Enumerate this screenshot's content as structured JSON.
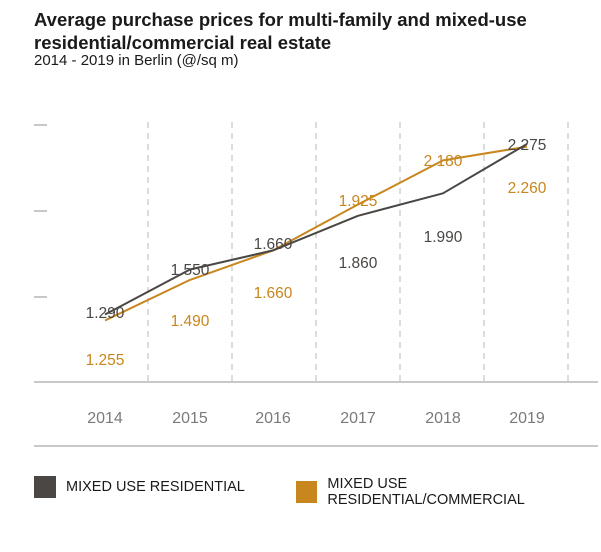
{
  "title": "Average purchase prices for multi-family and mixed-use residential/commercial real estate",
  "subtitle": "2014 - 2019 in Berlin (@/sq m)",
  "colors": {
    "mixed_use_residential": "#4a4744",
    "mixed_use_residential_commercial": "#c8861e",
    "grid": "#c9c9c9",
    "axis": "#b5b5b5",
    "tick_text": "#7a7a7a"
  },
  "chart_data": {
    "type": "line",
    "categories": [
      "2014",
      "2015",
      "2016",
      "2017",
      "2018",
      "2019"
    ],
    "series": [
      {
        "name": "MIXED USE RESIDENTIAL",
        "values": [
          1290,
          1550,
          1660,
          1860,
          1990,
          2275
        ],
        "labels": [
          "1.290",
          "1.550",
          "1.660",
          "1.860",
          "1.990",
          "2.275"
        ]
      },
      {
        "name": "MIXED USE RESIDENTIAL/COMMERCIAL",
        "values": [
          1255,
          1490,
          1660,
          1925,
          2180,
          2260
        ],
        "labels": [
          "1.255",
          "1.490",
          "1.660",
          "1.925",
          "2.180",
          "2.260"
        ]
      }
    ],
    "ylim": [
      900,
      2500
    ],
    "grid": "vertical dashed",
    "legend": "bottom"
  }
}
